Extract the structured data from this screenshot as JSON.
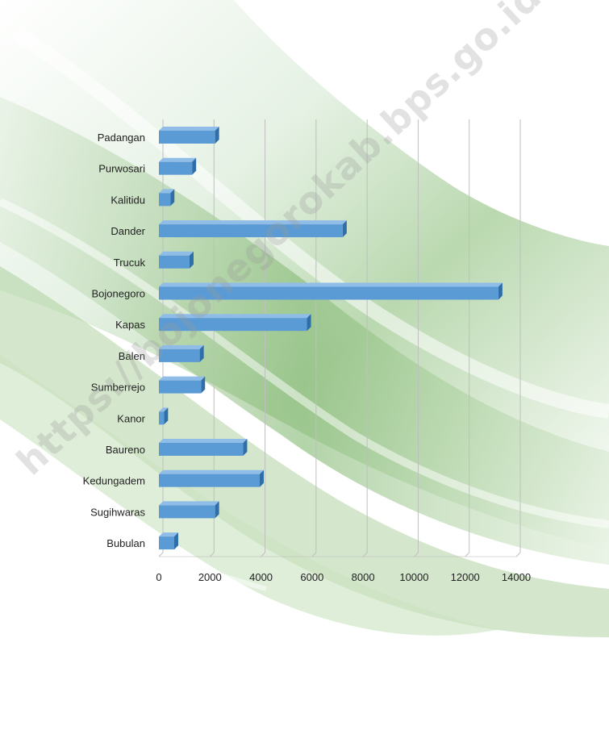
{
  "chart_data": {
    "type": "bar",
    "orientation": "horizontal",
    "style": "3d",
    "categories": [
      "Padangan",
      "Purwosari",
      "Kalitidu",
      "Dander",
      "Trucuk",
      "Bojonegoro",
      "Kapas",
      "Balen",
      "Sumberrejo",
      "Kanor",
      "Baureno",
      "Kedungadem",
      "Sugihwaras",
      "Bubulan"
    ],
    "values": [
      2200,
      1300,
      450,
      7200,
      1200,
      13300,
      5800,
      1600,
      1650,
      200,
      3300,
      3950,
      2200,
      600
    ],
    "xlim": [
      0,
      14000
    ],
    "xticks": [
      "0",
      "2000",
      "4000",
      "6000",
      "8000",
      "10000",
      "12000",
      "14000"
    ],
    "grid": true,
    "legend": "none",
    "colors": {
      "bar": "#5b9bd5",
      "bar_top": "#8fbde8",
      "bar_side": "#2f6ea8",
      "grid": "#bfbfbf"
    }
  },
  "watermark": "https://bojonegorokab.bps.go.id"
}
